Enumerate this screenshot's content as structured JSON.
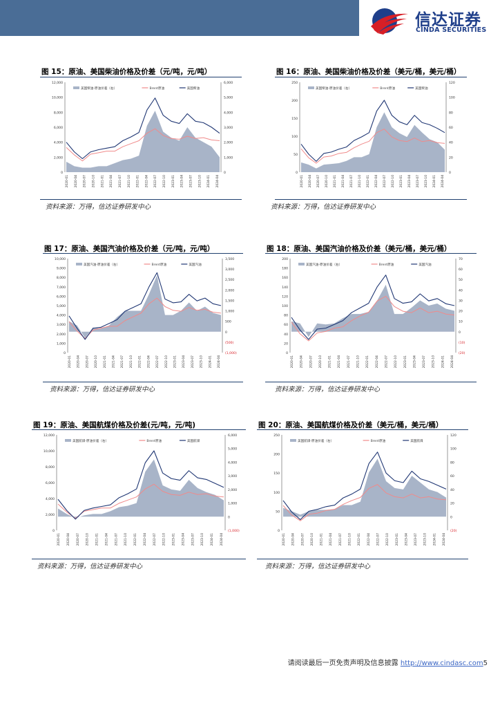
{
  "header": {
    "logo_cn": "信达证券",
    "logo_en": "CINDA SECURITIES"
  },
  "colors": {
    "header_bar": "#4a6d96",
    "logo_red": "#d71f26",
    "logo_blue": "#1f3f8a",
    "area_fill": "#a8b4c8",
    "brent_line": "#f08a8a",
    "product_line": "#1f3673",
    "negative_tick": "#d71f26"
  },
  "figures": [
    {
      "title": "图 15：原油、美国柴油价格及价差（元/吨，元/吨）",
      "source": "资料来源：万得，信达证券研发中心",
      "chart_data": {
        "type": "line",
        "legend": [
          "美国柴油-原油价差（右）",
          "Brent原油",
          "美国柴油"
        ],
        "left_ticks": [
          "12,000",
          "10,000",
          "8,000",
          "6,000",
          "4,000",
          "2,000",
          "0"
        ],
        "right_ticks": [
          "6,000",
          "5,000",
          "4,000",
          "3,000",
          "2,000",
          "1,000",
          "0"
        ],
        "x_ticks": [
          "2020-01",
          "2020-04",
          "2020-07",
          "2020-10",
          "2021-01",
          "2021-04",
          "2021-07",
          "2021-10",
          "2022-01",
          "2022-04",
          "2022-07",
          "2022-10",
          "2023-01",
          "2023-04",
          "2023-07",
          "2023-10",
          "2024-01",
          "2024-04"
        ],
        "left_range": [
          0,
          12000
        ],
        "right_range": [
          0,
          6000
        ],
        "series": [
          {
            "name": "Brent原油",
            "values": [
              3300,
              2300,
              1500,
              2400,
              2600,
              2800,
              2800,
              3400,
              3800,
              4200,
              5200,
              5800,
              4900,
              4500,
              4400,
              4800,
              4500,
              4600,
              4300,
              4200
            ]
          },
          {
            "name": "美国柴油",
            "values": [
              4000,
              2700,
              1800,
              2700,
              3000,
              3200,
              3400,
              4200,
              4700,
              5300,
              8300,
              9900,
              7600,
              6800,
              6500,
              7800,
              6800,
              6600,
              6000,
              5200
            ]
          },
          {
            "name": "美国柴油-原油价差（右）",
            "values": [
              700,
              400,
              300,
              300,
              400,
              400,
              600,
              800,
              900,
              1100,
              3100,
              4100,
              2700,
              2300,
              2100,
              3000,
              2300,
              2000,
              1700,
              1000
            ]
          }
        ]
      }
    },
    {
      "title": "图 16：原油、美国柴油价格及价差（美元/桶，美元/桶）",
      "source": "资料来源：万得，信达证券研发中心",
      "chart_data": {
        "type": "line",
        "legend": [
          "美国柴油-原油价差（右）",
          "Brent原油",
          "美国柴油"
        ],
        "left_ticks": [
          "250",
          "200",
          "150",
          "100",
          "50",
          "0"
        ],
        "right_ticks": [
          "120",
          "100",
          "80",
          "60",
          "40",
          "20",
          "0"
        ],
        "x_ticks": [
          "2020-01",
          "2020-04",
          "2020-07",
          "2020-10",
          "2021-01",
          "2021-04",
          "2021-07",
          "2021-10",
          "2022-01",
          "2022-04",
          "2022-07",
          "2022-10",
          "2023-01",
          "2023-04",
          "2023-07",
          "2023-10",
          "2024-01",
          "2024-04"
        ],
        "left_range": [
          0,
          250
        ],
        "right_range": [
          0,
          120
        ],
        "series": [
          {
            "name": "Brent原油",
            "values": [
              65,
              40,
              25,
              42,
              45,
              52,
              55,
              68,
              78,
              86,
              110,
              120,
              98,
              88,
              85,
              95,
              85,
              88,
              82,
              80
            ]
          },
          {
            "name": "美国柴油",
            "values": [
              78,
              50,
              30,
              52,
              56,
              64,
              70,
              88,
              98,
              110,
              170,
              200,
              158,
              140,
              132,
              158,
              138,
              132,
              122,
              110
            ]
          },
          {
            "name": "美国柴油-原油价差（右）",
            "values": [
              13,
              10,
              5,
              10,
              11,
              12,
              15,
              20,
              20,
              24,
              60,
              80,
              60,
              52,
              47,
              63,
              53,
              44,
              40,
              30
            ]
          }
        ]
      }
    },
    {
      "title": "图 17：原油、美国汽油价格及价差（元/吨，元/吨）",
      "source": "资料来源：万得，信达证券研发中心",
      "chart_data": {
        "type": "line",
        "legend": [
          "美国汽油-原油价差（右）",
          "Brent原油",
          "美国汽油"
        ],
        "left_ticks": [
          "10,000",
          "9,000",
          "8,000",
          "7,000",
          "6,000",
          "5,000",
          "4,000",
          "3,000",
          "2,000",
          "1,000",
          "0"
        ],
        "right_ticks": [
          "3,500",
          "3,000",
          "2,500",
          "2,000",
          "1,500",
          "1,000",
          "500",
          "0",
          "(500)",
          "(1,000)"
        ],
        "x_ticks": [
          "2020-01",
          "2020-04",
          "2020-07",
          "2020-10",
          "2021-01",
          "2021-04",
          "2021-07",
          "2021-10",
          "2022-01",
          "2022-04",
          "2022-07",
          "2022-10",
          "2023-01",
          "2023-04",
          "2023-07",
          "2023-10",
          "2024-01",
          "2024-04"
        ],
        "left_range": [
          0,
          10000
        ],
        "right_range": [
          -1000,
          3500
        ],
        "series": [
          {
            "name": "Brent原油",
            "values": [
              3300,
              2300,
              1500,
              2400,
              2600,
              2800,
              2800,
              3400,
              3800,
              4200,
              5200,
              5800,
              4900,
              4500,
              4400,
              4800,
              4500,
              4600,
              4300,
              4200
            ]
          },
          {
            "name": "美国汽油",
            "values": [
              3900,
              2600,
              1400,
              2600,
              2700,
              3100,
              3500,
              4400,
              4800,
              5200,
              7000,
              8500,
              5700,
              5300,
              5400,
              6200,
              5500,
              5800,
              5200,
              5000
            ]
          },
          {
            "name": "美国汽油-原油价差（右）",
            "values": [
              500,
              300,
              -300,
              200,
              150,
              300,
              700,
              1000,
              1000,
              1000,
              1800,
              2700,
              800,
              800,
              1000,
              1400,
              1000,
              1200,
              900,
              800
            ]
          }
        ]
      }
    },
    {
      "title": "图 18：原油、美国汽油价格及价差（美元/桶，美元/桶）",
      "source": "资料来源：万得，信达证券研发中心",
      "chart_data": {
        "type": "line",
        "legend": [
          "美国汽油-原油价差（右）",
          "Brent原油",
          "美国汽油"
        ],
        "left_ticks": [
          "200",
          "180",
          "160",
          "140",
          "120",
          "100",
          "80",
          "60",
          "40",
          "20",
          "0"
        ],
        "right_ticks": [
          "70",
          "60",
          "50",
          "40",
          "30",
          "20",
          "10",
          "0",
          "(10)",
          "(20)"
        ],
        "x_ticks": [
          "2020-01",
          "2020-04",
          "2020-07",
          "2020-10",
          "2021-01",
          "2021-04",
          "2021-07",
          "2021-10",
          "2022-01",
          "2022-04",
          "2022-07",
          "2022-10",
          "2023-01",
          "2023-04",
          "2023-07",
          "2023-10",
          "2024-01",
          "2024-04"
        ],
        "left_range": [
          0,
          200
        ],
        "right_range": [
          -20,
          70
        ],
        "series": [
          {
            "name": "Brent原油",
            "values": [
              65,
              40,
              25,
              42,
              45,
              52,
              55,
              68,
              78,
              86,
              110,
              120,
              98,
              88,
              85,
              95,
              85,
              88,
              82,
              80
            ]
          },
          {
            "name": "美国汽油",
            "values": [
              75,
              48,
              28,
              50,
              52,
              60,
              68,
              85,
              95,
              105,
              140,
              165,
              115,
              105,
              108,
              125,
              110,
              115,
              104,
              100
            ]
          },
          {
            "name": "美国汽油-原油价差（右）",
            "values": [
              10,
              8,
              -5,
              8,
              7,
              8,
              13,
              17,
              17,
              19,
              30,
              45,
              17,
              17,
              23,
              30,
              25,
              27,
              22,
              20
            ]
          }
        ]
      }
    },
    {
      "title": "图 19：原油、美国航煤价格及价差(元/吨，元/吨)",
      "source": "资料来源：万得，信达证券研发中心",
      "chart_data": {
        "type": "line",
        "legend": [
          "美国航煤-原油价差（右）",
          "Brent原油",
          "美国航煤"
        ],
        "left_ticks": [
          "12,000",
          "10,000",
          "8,000",
          "6,000",
          "4,000",
          "2,000",
          "0"
        ],
        "right_ticks": [
          "6,000",
          "5,000",
          "4,000",
          "3,000",
          "2,000",
          "1,000",
          "0",
          "(1,000)"
        ],
        "x_ticks": [
          "2020-01",
          "2020-04",
          "2020-07",
          "2020-10",
          "2021-01",
          "2021-04",
          "2021-07",
          "2021-10",
          "2022-01",
          "2022-04",
          "2022-07",
          "2022-10",
          "2023-01",
          "2023-04",
          "2023-07",
          "2023-10",
          "2024-01",
          "2024-04"
        ],
        "left_range": [
          0,
          12000
        ],
        "right_range": [
          -1000,
          6000
        ],
        "series": [
          {
            "name": "Brent原油",
            "values": [
              3300,
              2300,
              1500,
              2400,
              2600,
              2800,
              2800,
              3400,
              3800,
              4200,
              5200,
              5800,
              4900,
              4500,
              4400,
              4800,
              4500,
              4600,
              4300,
              4200
            ]
          },
          {
            "name": "美国航煤",
            "values": [
              3900,
              2500,
              1400,
              2500,
              2800,
              3000,
              3200,
              4100,
              4600,
              5200,
              8500,
              10000,
              7200,
              6500,
              6300,
              7500,
              6600,
              6400,
              5900,
              5400
            ]
          },
          {
            "name": "美国航煤-原油价差（右）",
            "values": [
              600,
              200,
              -100,
              100,
              200,
              200,
              400,
              700,
              800,
              1000,
              3300,
              4200,
              2300,
              2000,
              1900,
              2700,
              2100,
              1800,
              1600,
              1200
            ]
          }
        ]
      }
    },
    {
      "title": "图 20：原油、美国航煤价格及价差（美元/桶，美元/桶）",
      "source": "资料来源：万得，信达证券研发中心",
      "chart_data": {
        "type": "line",
        "legend": [
          "美国航煤-原油价差（右）",
          "Brent原油",
          "美国航煤"
        ],
        "left_ticks": [
          "250",
          "200",
          "150",
          "100",
          "50",
          "0"
        ],
        "right_ticks": [
          "120",
          "100",
          "80",
          "60",
          "40",
          "20",
          "0",
          "(20)"
        ],
        "x_ticks": [
          "2020-01",
          "2020-04",
          "2020-07",
          "2020-10",
          "2021-01",
          "2021-04",
          "2021-07",
          "2021-10",
          "2022-01",
          "2022-04",
          "2022-07",
          "2022-10",
          "2023-01",
          "2023-04",
          "2023-07",
          "2023-10",
          "2024-01",
          "2024-04"
        ],
        "left_range": [
          0,
          250
        ],
        "right_range": [
          -20,
          120
        ],
        "series": [
          {
            "name": "Brent原油",
            "values": [
              65,
              40,
              25,
              42,
              45,
              52,
              55,
              68,
              78,
              86,
              110,
              120,
              98,
              88,
              85,
              95,
              85,
              88,
              82,
              80
            ]
          },
          {
            "name": "美国航煤",
            "values": [
              78,
              48,
              28,
              50,
              55,
              62,
              66,
              85,
              95,
              108,
              175,
              205,
              150,
              130,
              125,
              155,
              135,
              128,
              118,
              108
            ]
          },
          {
            "name": "美国航煤-原油价差（右）",
            "values": [
              13,
              8,
              3,
              8,
              10,
              10,
              11,
              17,
              17,
              22,
              65,
              85,
              52,
              42,
              40,
              60,
              50,
              40,
              36,
              28
            ]
          }
        ]
      }
    }
  ],
  "footer": {
    "text": "请阅读最后一页免责声明及信息披露 ",
    "link": "http://www.cindasc.com",
    "page": "5"
  }
}
